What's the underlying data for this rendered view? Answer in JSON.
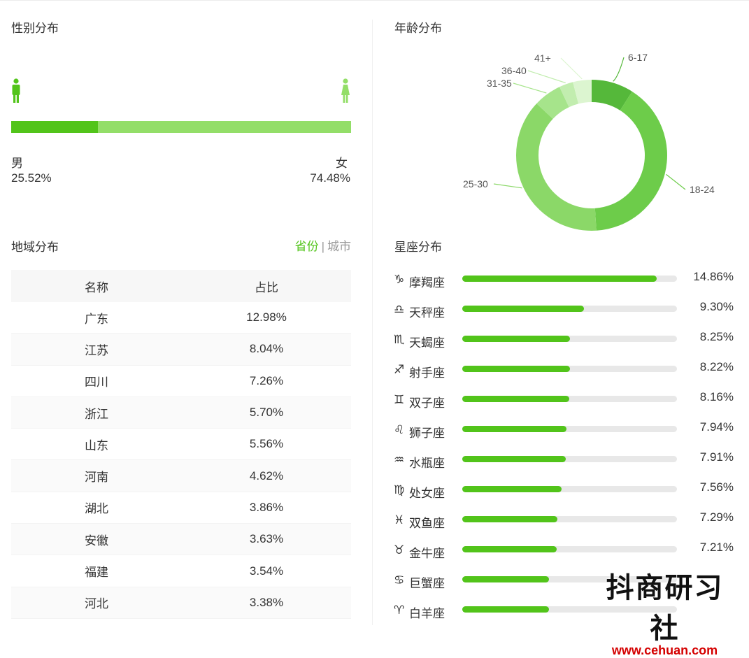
{
  "gender": {
    "title": "性别分布",
    "male_label": "男",
    "male_value": "25.52%",
    "male_fraction": 0.2552,
    "female_label": "女",
    "female_value": "74.48%",
    "male_color": "#52c41a",
    "female_color": "#93de68"
  },
  "age": {
    "title": "年龄分布",
    "segments": [
      {
        "label": "6-17",
        "value": 9,
        "color": "#55b83a"
      },
      {
        "label": "18-24",
        "value": 40,
        "color": "#6dcc4a"
      },
      {
        "label": "25-30",
        "value": 38,
        "color": "#8bd868"
      },
      {
        "label": "31-35",
        "value": 6,
        "color": "#a6e48b"
      },
      {
        "label": "36-40",
        "value": 3,
        "color": "#c2edaf"
      },
      {
        "label": "41+",
        "value": 4,
        "color": "#dcf5d0"
      }
    ]
  },
  "region": {
    "title": "地域分布",
    "tab_province": "省份",
    "tab_separator": "|",
    "tab_city": "城市",
    "col_name": "名称",
    "col_ratio": "占比",
    "rows": [
      {
        "name": "广东",
        "ratio": "12.98%"
      },
      {
        "name": "江苏",
        "ratio": "8.04%"
      },
      {
        "name": "四川",
        "ratio": "7.26%"
      },
      {
        "name": "浙江",
        "ratio": "5.70%"
      },
      {
        "name": "山东",
        "ratio": "5.56%"
      },
      {
        "name": "河南",
        "ratio": "4.62%"
      },
      {
        "name": "湖北",
        "ratio": "3.86%"
      },
      {
        "name": "安徽",
        "ratio": "3.63%"
      },
      {
        "name": "福建",
        "ratio": "3.54%"
      },
      {
        "name": "河北",
        "ratio": "3.38%"
      }
    ]
  },
  "zodiac": {
    "title": "星座分布",
    "max_percent": 16.4,
    "items": [
      {
        "icon": "♑",
        "name": "摩羯座",
        "value": "14.86%",
        "percent": 14.86
      },
      {
        "icon": "♎",
        "name": "天秤座",
        "value": "9.30%",
        "percent": 9.3
      },
      {
        "icon": "♏",
        "name": "天蝎座",
        "value": "8.25%",
        "percent": 8.25
      },
      {
        "icon": "♐",
        "name": "射手座",
        "value": "8.22%",
        "percent": 8.22
      },
      {
        "icon": "♊",
        "name": "双子座",
        "value": "8.16%",
        "percent": 8.16
      },
      {
        "icon": "♌",
        "name": "狮子座",
        "value": "7.94%",
        "percent": 7.94
      },
      {
        "icon": "♒",
        "name": "水瓶座",
        "value": "7.91%",
        "percent": 7.91
      },
      {
        "icon": "♍",
        "name": "处女座",
        "value": "7.56%",
        "percent": 7.56
      },
      {
        "icon": "♓",
        "name": "双鱼座",
        "value": "7.29%",
        "percent": 7.29
      },
      {
        "icon": "♉",
        "name": "金牛座",
        "value": "7.21%",
        "percent": 7.21
      },
      {
        "icon": "♋",
        "name": "巨蟹座",
        "value": "",
        "percent": 6.6
      },
      {
        "icon": "♈",
        "name": "白羊座",
        "value": "",
        "percent": 6.6
      }
    ]
  },
  "watermark": {
    "main": "抖商研习社",
    "sub": "www.cehuan.com"
  }
}
